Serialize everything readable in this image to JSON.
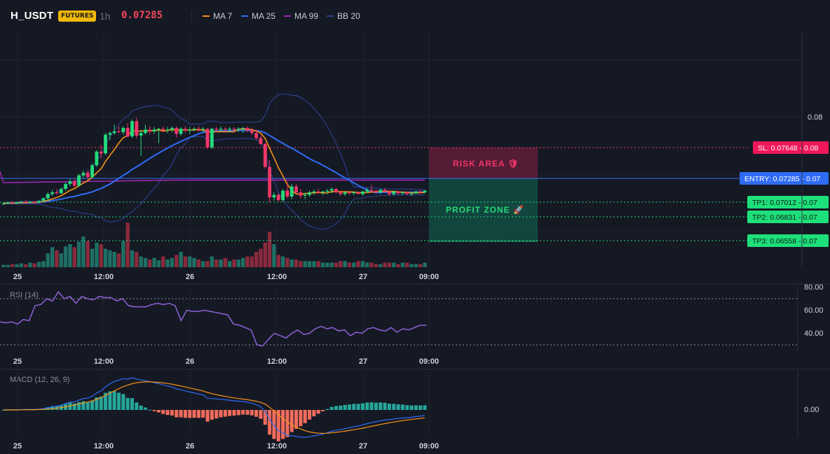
{
  "header": {
    "symbol": "H_USDT",
    "badge": "FUTURES",
    "timeframe": "1h",
    "price": "0.07285",
    "indicators": [
      {
        "label": "MA 7",
        "color": "#f7931a"
      },
      {
        "label": "MA 25",
        "color": "#2f6cf6"
      },
      {
        "label": "MA 99",
        "color": "#9c27b0"
      },
      {
        "label": "BB 20",
        "color": "#2a3d86"
      }
    ]
  },
  "colors": {
    "up": "#26d97a",
    "down": "#f23668",
    "vol_up": "#1f6f64",
    "vol_down": "#8a2a3d",
    "grid": "#1f2330",
    "axis_text": "#d1d4dc",
    "rsi": "#8e62d6",
    "macd": "#2f6cf6",
    "signal": "#f7931a",
    "hist_pos": "#26a69a",
    "hist_neg": "#f26c5c"
  },
  "labels": {
    "risk_area": "RISK AREA 🛡",
    "profit_zone": "PROFIT ZONE 🚀",
    "sl": "SL: 0.07648 - 0.08",
    "entry": "ENTRY: 0.07285 - 0.07",
    "tp1": "TP1: 0.07012 - 0.07",
    "tp2": "TP2: 0.06831 - 0.07",
    "tp3": "TP3: 0.06558 - 0.07",
    "rsi_title": "RSI (14)",
    "macd_title": "MACD (12, 26, 9)"
  },
  "chart_data": [
    {
      "type": "candlestick",
      "title": "H_USDT 1h",
      "x_ticks": [
        "25",
        "12:00",
        "26",
        "12:00",
        "27",
        "09:00"
      ],
      "y_ticks": [
        "0.08"
      ],
      "levels": {
        "sl": 0.07648,
        "entry": 0.07285,
        "tp1": 0.07012,
        "tp2": 0.06831,
        "tp3": 0.06558
      },
      "series": [
        {
          "name": "MA 7"
        },
        {
          "name": "MA 25"
        },
        {
          "name": "MA 99"
        },
        {
          "name": "BB 20"
        }
      ],
      "candles": [
        [
          0.0698,
          0.07,
          0.0697,
          0.0699
        ],
        [
          0.0699,
          0.0701,
          0.0698,
          0.07
        ],
        [
          0.07,
          0.0702,
          0.0699,
          0.0699
        ],
        [
          0.0699,
          0.0701,
          0.0698,
          0.07
        ],
        [
          0.07,
          0.0702,
          0.0699,
          0.0701
        ],
        [
          0.0701,
          0.0703,
          0.07,
          0.07
        ],
        [
          0.07,
          0.0701,
          0.0699,
          0.0701
        ],
        [
          0.0701,
          0.0702,
          0.0699,
          0.07
        ],
        [
          0.07,
          0.0702,
          0.0699,
          0.0702
        ],
        [
          0.0702,
          0.0706,
          0.0701,
          0.0705
        ],
        [
          0.0705,
          0.0712,
          0.0703,
          0.071
        ],
        [
          0.071,
          0.0715,
          0.0708,
          0.0712
        ],
        [
          0.0712,
          0.0716,
          0.0709,
          0.0711
        ],
        [
          0.0711,
          0.0718,
          0.071,
          0.0716
        ],
        [
          0.0716,
          0.0724,
          0.0714,
          0.0722
        ],
        [
          0.0722,
          0.0728,
          0.0719,
          0.0725
        ],
        [
          0.0725,
          0.0728,
          0.0718,
          0.072
        ],
        [
          0.072,
          0.0734,
          0.0718,
          0.0732
        ],
        [
          0.0732,
          0.0738,
          0.0728,
          0.0735
        ],
        [
          0.0735,
          0.0738,
          0.0726,
          0.073
        ],
        [
          0.073,
          0.0746,
          0.0728,
          0.0744
        ],
        [
          0.0744,
          0.0762,
          0.0742,
          0.076
        ],
        [
          0.076,
          0.0768,
          0.0752,
          0.0758
        ],
        [
          0.0758,
          0.0782,
          0.0756,
          0.078
        ],
        [
          0.078,
          0.0784,
          0.0774,
          0.0782
        ],
        [
          0.0782,
          0.0792,
          0.078,
          0.0784
        ],
        [
          0.0784,
          0.079,
          0.0782,
          0.0783
        ],
        [
          0.0783,
          0.079,
          0.078,
          0.0788
        ],
        [
          0.0788,
          0.0794,
          0.0777,
          0.0778
        ],
        [
          0.0778,
          0.0798,
          0.0776,
          0.0796
        ],
        [
          0.0796,
          0.08,
          0.0776,
          0.0779
        ],
        [
          0.0779,
          0.0786,
          0.0755,
          0.0782
        ],
        [
          0.0782,
          0.0792,
          0.078,
          0.0786
        ],
        [
          0.0786,
          0.079,
          0.078,
          0.0784
        ],
        [
          0.0784,
          0.0789,
          0.0781,
          0.0786
        ],
        [
          0.0786,
          0.0788,
          0.077,
          0.0787
        ],
        [
          0.0787,
          0.079,
          0.0783,
          0.0785
        ],
        [
          0.0785,
          0.0789,
          0.0782,
          0.0786
        ],
        [
          0.0786,
          0.079,
          0.0783,
          0.0788
        ],
        [
          0.0788,
          0.079,
          0.0777,
          0.0781
        ],
        [
          0.0781,
          0.0789,
          0.0779,
          0.0787
        ],
        [
          0.0787,
          0.079,
          0.0782,
          0.0785
        ],
        [
          0.0785,
          0.0789,
          0.0781,
          0.0786
        ],
        [
          0.0786,
          0.0789,
          0.0784,
          0.0787
        ],
        [
          0.0787,
          0.079,
          0.0784,
          0.0786
        ],
        [
          0.0786,
          0.0789,
          0.0783,
          0.0787
        ],
        [
          0.0787,
          0.0788,
          0.0763,
          0.0765
        ],
        [
          0.0765,
          0.0788,
          0.0763,
          0.0787
        ],
        [
          0.0787,
          0.0789,
          0.0783,
          0.0786
        ],
        [
          0.0786,
          0.079,
          0.0784,
          0.0787
        ],
        [
          0.0787,
          0.0789,
          0.0783,
          0.0786
        ],
        [
          0.0786,
          0.0789,
          0.0783,
          0.0787
        ],
        [
          0.0787,
          0.0789,
          0.0784,
          0.0786
        ],
        [
          0.0786,
          0.0789,
          0.0783,
          0.0787
        ],
        [
          0.0787,
          0.0789,
          0.0782,
          0.0788
        ],
        [
          0.0788,
          0.079,
          0.0783,
          0.0785
        ],
        [
          0.0785,
          0.0788,
          0.078,
          0.0782
        ],
        [
          0.0782,
          0.0786,
          0.0774,
          0.0776
        ],
        [
          0.0776,
          0.0779,
          0.0768,
          0.0769
        ],
        [
          0.0769,
          0.0771,
          0.074,
          0.0742
        ],
        [
          0.0742,
          0.075,
          0.07,
          0.0706
        ],
        [
          0.0706,
          0.0712,
          0.0702,
          0.0709
        ],
        [
          0.0709,
          0.0711,
          0.0701,
          0.0703
        ],
        [
          0.0703,
          0.0716,
          0.0701,
          0.0714
        ],
        [
          0.0714,
          0.0724,
          0.0705,
          0.0707
        ],
        [
          0.0707,
          0.0722,
          0.0704,
          0.0719
        ],
        [
          0.0719,
          0.0722,
          0.071,
          0.0712
        ],
        [
          0.0712,
          0.0716,
          0.0705,
          0.0708
        ],
        [
          0.0708,
          0.0712,
          0.0704,
          0.0709
        ],
        [
          0.0709,
          0.0714,
          0.0707,
          0.0712
        ],
        [
          0.0712,
          0.0715,
          0.0709,
          0.0713
        ],
        [
          0.0713,
          0.0716,
          0.071,
          0.0712
        ],
        [
          0.0712,
          0.0714,
          0.0709,
          0.0713
        ],
        [
          0.0713,
          0.0716,
          0.071,
          0.0714
        ],
        [
          0.0714,
          0.0718,
          0.0711,
          0.0716
        ],
        [
          0.0716,
          0.0717,
          0.0711,
          0.0712
        ],
        [
          0.0712,
          0.0714,
          0.0708,
          0.071
        ],
        [
          0.071,
          0.0713,
          0.0708,
          0.0712
        ],
        [
          0.0712,
          0.0714,
          0.0709,
          0.0711
        ],
        [
          0.0711,
          0.0713,
          0.0709,
          0.0712
        ],
        [
          0.0712,
          0.0713,
          0.071,
          0.071
        ],
        [
          0.071,
          0.0714,
          0.0708,
          0.0713
        ],
        [
          0.0713,
          0.0717,
          0.0711,
          0.0715
        ],
        [
          0.0715,
          0.0721,
          0.0712,
          0.0714
        ],
        [
          0.0714,
          0.0715,
          0.0711,
          0.0712
        ],
        [
          0.0712,
          0.0716,
          0.071,
          0.0715
        ],
        [
          0.0715,
          0.0717,
          0.0712,
          0.0713
        ],
        [
          0.0713,
          0.0714,
          0.0708,
          0.071
        ],
        [
          0.071,
          0.0714,
          0.0708,
          0.0713
        ],
        [
          0.0713,
          0.0714,
          0.0709,
          0.0711
        ],
        [
          0.0711,
          0.0713,
          0.0709,
          0.0712
        ],
        [
          0.0712,
          0.0713,
          0.0709,
          0.071
        ],
        [
          0.071,
          0.0712,
          0.0708,
          0.0711
        ],
        [
          0.0711,
          0.0714,
          0.071,
          0.0713
        ],
        [
          0.0713,
          0.0715,
          0.071,
          0.0712
        ],
        [
          0.0712,
          0.0715,
          0.0711,
          0.0714
        ]
      ],
      "volumes": [
        3,
        3,
        4,
        4,
        5,
        4,
        6,
        5,
        7,
        8,
        18,
        26,
        22,
        18,
        27,
        30,
        26,
        33,
        40,
        34,
        24,
        32,
        30,
        24,
        22,
        20,
        18,
        34,
        58,
        22,
        20,
        14,
        12,
        10,
        12,
        9,
        14,
        10,
        12,
        16,
        20,
        14,
        14,
        12,
        10,
        8,
        8,
        14,
        10,
        10,
        12,
        8,
        10,
        10,
        12,
        14,
        14,
        20,
        24,
        32,
        46,
        30,
        16,
        14,
        12,
        10,
        10,
        8,
        8,
        8,
        8,
        8,
        6,
        6,
        6,
        6,
        8,
        8,
        6,
        6,
        8,
        8,
        6,
        6,
        4,
        4,
        6,
        6,
        6,
        4,
        6,
        6,
        4,
        4,
        4,
        6
      ]
    },
    {
      "type": "line",
      "title": "RSI (14)",
      "x_ticks": [
        "25",
        "12:00",
        "26",
        "12:00",
        "27",
        "09:00"
      ],
      "y_ticks": [
        "80.00",
        "60.00",
        "40.00"
      ],
      "ylim": [
        20,
        85
      ],
      "levels": [
        70,
        30
      ],
      "values": [
        50,
        49,
        50,
        48,
        52,
        51,
        64,
        65,
        70,
        68,
        76,
        70,
        72,
        66,
        72,
        70,
        69,
        72,
        71,
        71,
        68,
        70,
        64,
        63,
        63,
        63,
        65,
        66,
        65,
        66,
        64,
        51,
        60,
        59,
        59,
        60,
        59,
        58,
        57,
        56,
        48,
        47,
        45,
        43,
        30,
        29,
        35,
        40,
        38,
        36,
        40,
        43,
        39,
        40,
        44,
        46,
        44,
        45,
        42,
        43,
        38,
        41,
        40,
        44,
        45,
        43,
        42,
        45,
        41,
        44,
        43,
        45,
        47,
        47
      ],
      "series": [
        {
          "name": "RSI (14)"
        }
      ]
    },
    {
      "type": "line",
      "title": "MACD (12, 26, 9)",
      "x_ticks": [
        "25",
        "12:00",
        "26",
        "12:00",
        "27",
        "09:00"
      ],
      "y_ticks": [
        "0.00"
      ],
      "series": [
        {
          "name": "MACD"
        },
        {
          "name": "Signal"
        },
        {
          "name": "Histogram"
        }
      ]
    }
  ]
}
